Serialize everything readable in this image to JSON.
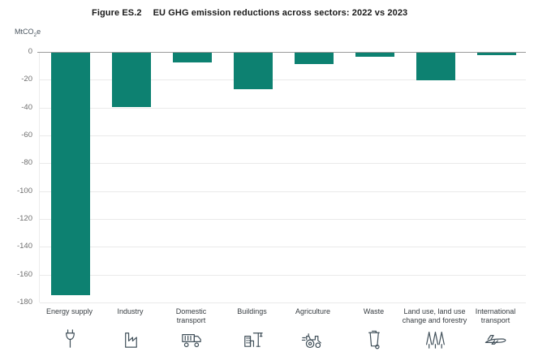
{
  "header": {
    "figure_label": "Figure ES.2",
    "title": "EU GHG emission reductions across sectors: 2022 vs 2023"
  },
  "axis": {
    "unit_prefix": "MtCO",
    "unit_sub": "2",
    "unit_suffix": "e"
  },
  "chart_data": {
    "type": "bar",
    "title": "EU GHG emission reductions across sectors: 2022 vs 2023",
    "ylabel": "MtCO2e",
    "xlabel": "",
    "categories": [
      "Energy supply",
      "Industry",
      "Domestic transport",
      "Buildings",
      "Agriculture",
      "Waste",
      "Land use, land use change and forestry",
      "International transport"
    ],
    "label_lines": [
      [
        "Energy supply"
      ],
      [
        "Industry"
      ],
      [
        "Domestic",
        "transport"
      ],
      [
        "Buildings"
      ],
      [
        "Agriculture"
      ],
      [
        "Waste"
      ],
      [
        "Land use, land use",
        "change and forestry"
      ],
      [
        "International",
        "transport"
      ]
    ],
    "values": [
      -174,
      -39,
      -7,
      -26,
      -8,
      -3,
      -20,
      -2
    ],
    "icons": [
      "plug-icon",
      "factory-icon",
      "truck-icon",
      "building-crane-icon",
      "tractor-icon",
      "waste-bin-icon",
      "trees-icon",
      "airplane-icon"
    ],
    "ylim": [
      -180,
      0
    ],
    "yticks": [
      0,
      -20,
      -40,
      -60,
      -80,
      -100,
      -120,
      -140,
      -160,
      -180
    ],
    "grid": true,
    "legend": "none",
    "bar_color": "#0D8171"
  },
  "colors": {
    "bar": "#0D8171",
    "zero_line": "#9b9b9b",
    "gridline": "#eaeaea",
    "tick_label": "#6f6f6f",
    "category_label": "#363c41",
    "icon_stroke": "#41505A",
    "title_text": "#1a1a1a"
  }
}
